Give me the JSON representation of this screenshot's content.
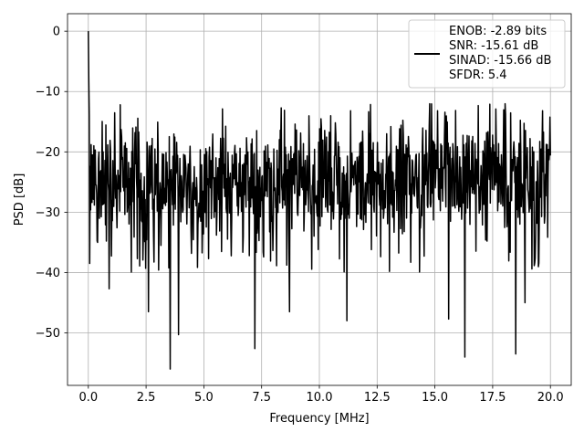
{
  "chart_data": {
    "type": "line",
    "title": "",
    "xlabel": "Frequency [MHz]",
    "ylabel": "PSD [dB]",
    "xlim": [
      -0.9,
      20.9
    ],
    "ylim": [
      -58.7,
      2.9
    ],
    "x_ticks": [
      0.0,
      2.5,
      5.0,
      7.5,
      10.0,
      12.5,
      15.0,
      17.5,
      20.0
    ],
    "x_tick_labels": [
      "0.0",
      "2.5",
      "5.0",
      "7.5",
      "10.0",
      "12.5",
      "15.0",
      "17.5",
      "20.0"
    ],
    "y_ticks": [
      0,
      -10,
      -20,
      -30,
      -40,
      -50
    ],
    "y_tick_labels": [
      "0",
      "−10",
      "−20",
      "−30",
      "−40",
      "−50"
    ],
    "grid": true,
    "legend_position": "upper-right",
    "line_color": "#000000",
    "x_range": [
      0.0,
      20.0
    ],
    "sample_count": 1000,
    "noise_floor_db": -25,
    "peak": {
      "x": 0.0,
      "y": 0.0
    },
    "notable_minima": [
      {
        "x": 0.9,
        "y": -42.7
      },
      {
        "x": 2.6,
        "y": -46.5
      },
      {
        "x": 3.55,
        "y": -56.0
      },
      {
        "x": 3.9,
        "y": -50.3
      },
      {
        "x": 7.2,
        "y": -52.6
      },
      {
        "x": 8.7,
        "y": -46.5
      },
      {
        "x": 11.2,
        "y": -48.0
      },
      {
        "x": 15.6,
        "y": -47.7
      },
      {
        "x": 16.3,
        "y": -54.0
      },
      {
        "x": 18.5,
        "y": -53.5
      },
      {
        "x": 18.9,
        "y": -45.0
      }
    ],
    "series": [
      {
        "name": "ENOB: -2.89 bits\nSNR: -15.61 dB\nSINAD: -15.66 dB\nSFDR: 5.4",
        "legend_lines": [
          "ENOB: -2.89 bits",
          "SNR: -15.61 dB",
          "SINAD: -15.66 dB",
          "SFDR: 5.4"
        ]
      }
    ]
  }
}
